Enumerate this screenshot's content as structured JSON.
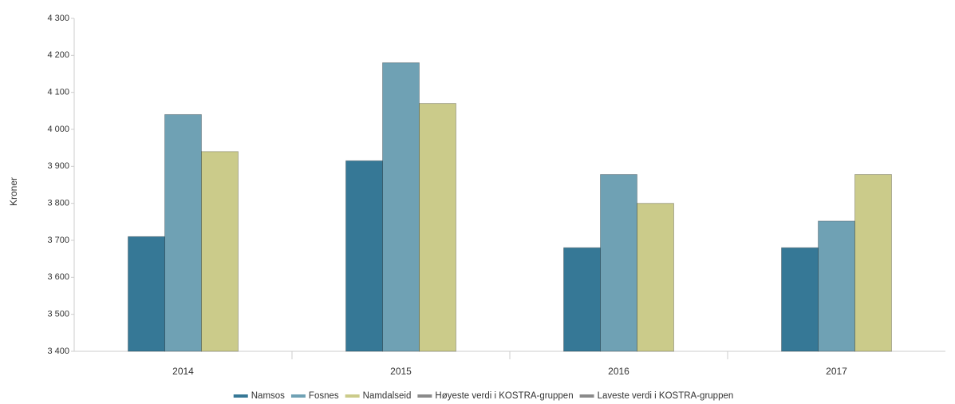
{
  "chart_data": {
    "type": "bar",
    "y_label": "Kroner",
    "categories": [
      "2014",
      "2015",
      "2016",
      "2017"
    ],
    "series": [
      {
        "name": "Namsos",
        "color": "#367896",
        "values": [
          3710,
          3915,
          3680,
          3680
        ]
      },
      {
        "name": "Fosnes",
        "color": "#6fa1b4",
        "values": [
          4040,
          4180,
          3878,
          3752
        ]
      },
      {
        "name": "Namdalseid",
        "color": "#cbcb8a",
        "values": [
          3940,
          4070,
          3800,
          3878
        ]
      },
      {
        "name": "Høyeste verdi i KOSTRA-gruppen",
        "color": "#8a8a8a",
        "values": [
          null,
          null,
          null,
          null
        ]
      },
      {
        "name": "Laveste verdi i KOSTRA-gruppen",
        "color": "#8a8a8a",
        "values": [
          null,
          null,
          null,
          null
        ]
      }
    ],
    "ylim": [
      3400,
      4300
    ],
    "yticks": [
      {
        "value": 3400,
        "label": "3 400"
      },
      {
        "value": 3500,
        "label": "3 500"
      },
      {
        "value": 3600,
        "label": "3 600"
      },
      {
        "value": 3700,
        "label": "3 700"
      },
      {
        "value": 3800,
        "label": "3 800"
      },
      {
        "value": 3900,
        "label": "3 900"
      },
      {
        "value": 4000,
        "label": "4 000"
      },
      {
        "value": 4100,
        "label": "4 100"
      },
      {
        "value": 4200,
        "label": "4 200"
      },
      {
        "value": 4300,
        "label": "4 300"
      }
    ],
    "legend": "bottom"
  }
}
